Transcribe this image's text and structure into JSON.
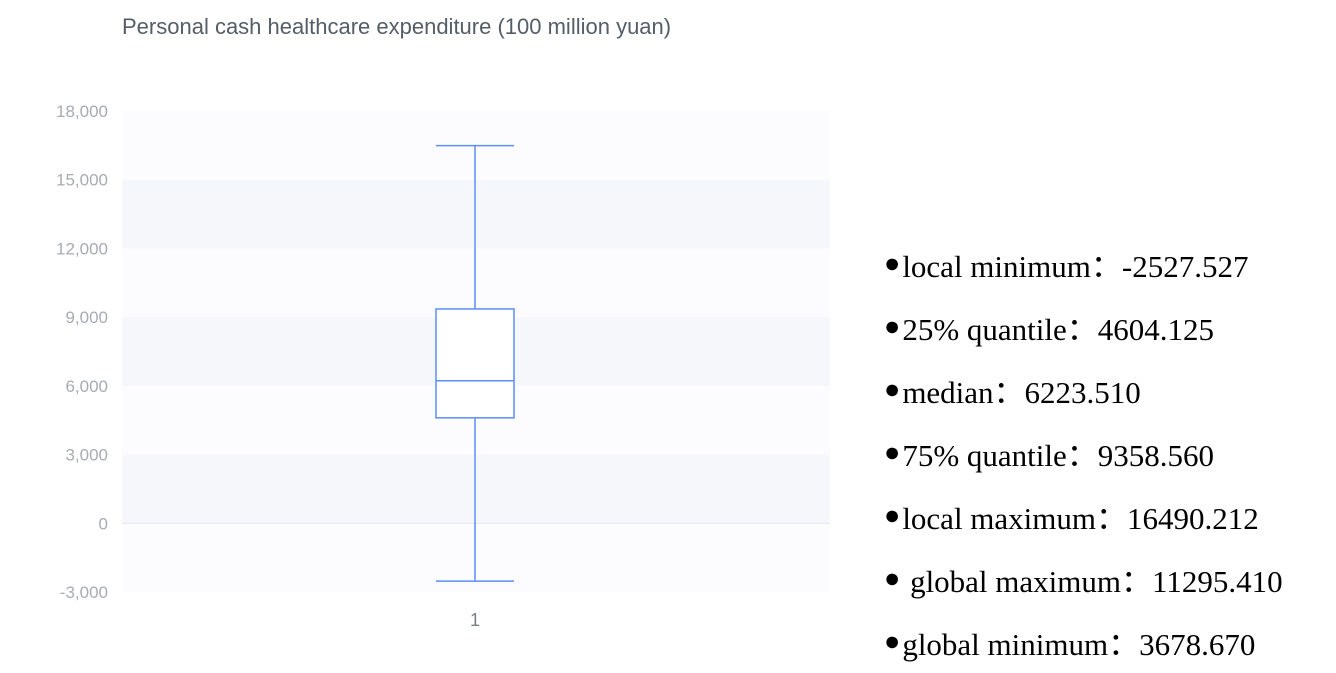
{
  "chart_data": {
    "type": "box",
    "title": "Personal cash healthcare expenditure (100 million yuan)",
    "categories": [
      "1"
    ],
    "y_ticks": [
      "18,000",
      "15,000",
      "12,000",
      "9,000",
      "6,000",
      "3,000",
      "0",
      "-3,000"
    ],
    "ylim": [
      -3000,
      18000
    ],
    "grid": "alternating horizontal bands",
    "box": {
      "low_whisker": -2527.527,
      "q1": 4604.125,
      "median": 6223.51,
      "q3": 9358.56,
      "high_whisker": 16490.212
    }
  },
  "stats": [
    {
      "bullet": "●",
      "label": "local minimum：-2527.527"
    },
    {
      "bullet": "●",
      "label": "25% quantile：4604.125"
    },
    {
      "bullet": "●",
      "label": "median：6223.510"
    },
    {
      "bullet": "●",
      "label": "75% quantile：9358.560"
    },
    {
      "bullet": "●",
      "label": "local maximum：16490.212"
    },
    {
      "bullet": "●",
      "label": " global maximum：11295.410"
    },
    {
      "bullet": "●",
      "label": "global minimum：3678.670"
    }
  ],
  "colors": {
    "box_stroke": "#5b8ff9",
    "band": "#f6f7fb",
    "tick_text": "#a7abb3",
    "title_text": "#555d66"
  }
}
